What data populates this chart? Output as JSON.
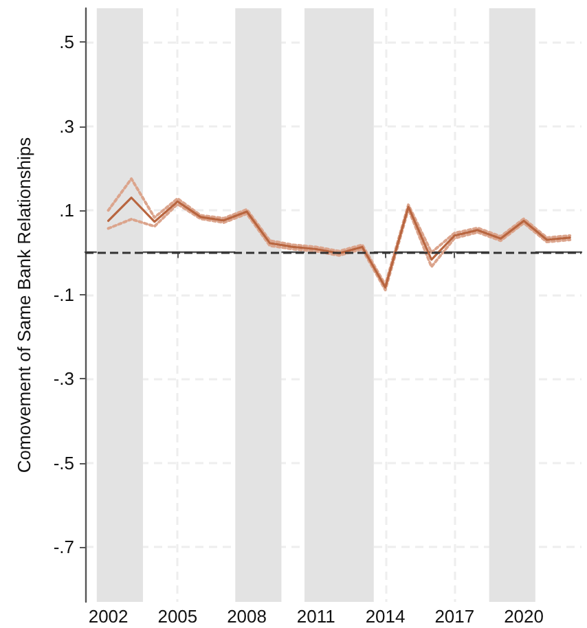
{
  "chart_data": {
    "type": "line",
    "ylabel": "Comovement of Same Bank Relationships",
    "x": [
      2002,
      2003,
      2004,
      2005,
      2006,
      2007,
      2008,
      2009,
      2010,
      2011,
      2012,
      2013,
      2014,
      2015,
      2016,
      2017,
      2018,
      2019,
      2020,
      2021,
      2022
    ],
    "series": [
      {
        "color": "#dba48c",
        "line_style": "dotted",
        "values": [
          0.057,
          0.079,
          0.062,
          0.115,
          0.08,
          0.071,
          0.092,
          0.016,
          0.008,
          0.003,
          -0.007,
          0.008,
          -0.089,
          0.103,
          -0.034,
          0.034,
          0.048,
          0.028,
          0.07,
          0.025,
          0.03
        ]
      },
      {
        "color": "#dba48c",
        "line_style": "dotted",
        "values": [
          0.1,
          0.175,
          0.083,
          0.128,
          0.088,
          0.081,
          0.102,
          0.028,
          0.018,
          0.013,
          0.003,
          0.018,
          -0.077,
          0.113,
          0.0,
          0.046,
          0.058,
          0.038,
          0.08,
          0.035,
          0.04
        ]
      },
      {
        "color": "#b8653f",
        "line_style": "solid",
        "values": [
          0.075,
          0.13,
          0.073,
          0.121,
          0.084,
          0.076,
          0.097,
          0.022,
          0.013,
          0.008,
          -0.002,
          0.013,
          -0.083,
          0.108,
          -0.017,
          0.04,
          0.053,
          0.033,
          0.075,
          0.03,
          0.035
        ]
      }
    ],
    "xlim": [
      2001,
      2022.5
    ],
    "xticks": [
      2002,
      2005,
      2008,
      2011,
      2014,
      2017,
      2020
    ],
    "ylim": [
      -0.83,
      0.58
    ],
    "yticks": [
      {
        "value": 0.5,
        "label": ".5"
      },
      {
        "value": 0.3,
        "label": ".3"
      },
      {
        "value": 0.1,
        "label": ".1"
      },
      {
        "value": -0.1,
        "label": "-.1"
      },
      {
        "value": -0.3,
        "label": "-.3"
      },
      {
        "value": -0.5,
        "label": "-.5"
      },
      {
        "value": -0.7,
        "label": "-.7"
      }
    ],
    "ref_lines": [
      {
        "axis": "y",
        "value": 0,
        "color": "#333333",
        "line_style": "dashed"
      }
    ],
    "bands": [
      {
        "axis": "x",
        "from": 2001.5,
        "to": 2003.5,
        "color": "#e3e3e3"
      },
      {
        "axis": "x",
        "from": 2007.5,
        "to": 2009.5,
        "color": "#e3e3e3"
      },
      {
        "axis": "x",
        "from": 2010.5,
        "to": 2013.5,
        "color": "#e3e3e3"
      },
      {
        "axis": "x",
        "from": 2018.5,
        "to": 2020.5,
        "color": "#e3e3e3"
      }
    ],
    "grid": true,
    "marker": "none"
  }
}
